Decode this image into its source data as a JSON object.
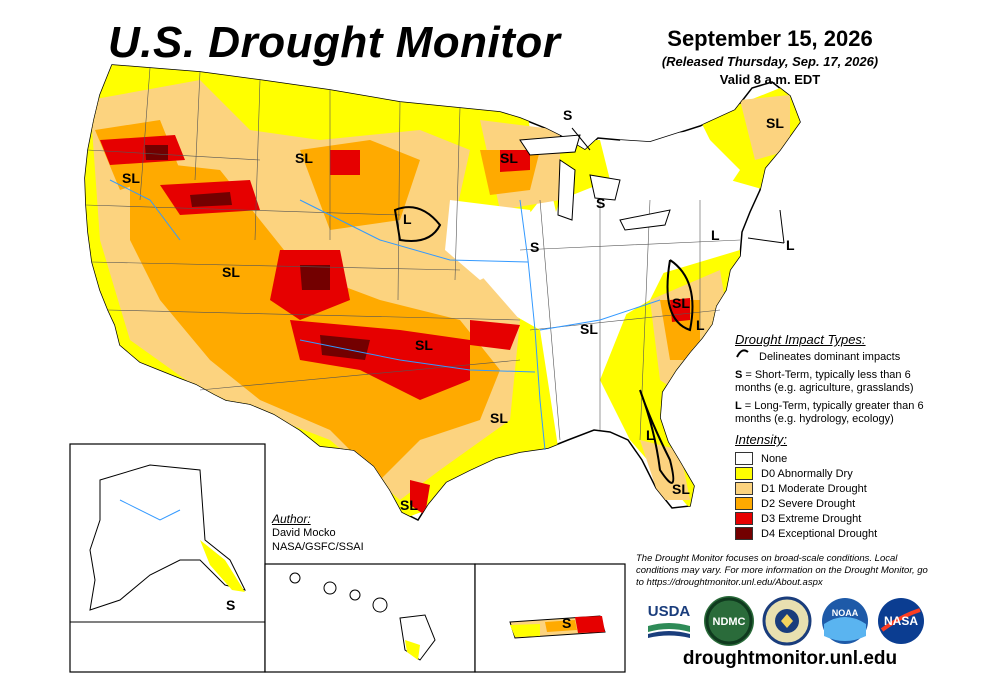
{
  "header": {
    "title": "U.S. Drought Monitor",
    "date": "September 15, 2026",
    "released": "(Released Thursday, Sep. 17, 2026)",
    "valid": "Valid 8 a.m. EDT"
  },
  "impact_legend": {
    "heading": "Drought Impact Types:",
    "delineates": "Delineates dominant impacts",
    "short_key": "S",
    "short_text": "= Short-Term, typically less than 6 months (e.g. agriculture, grasslands)",
    "long_key": "L",
    "long_text": "= Long-Term, typically greater than 6 months (e.g. hydrology, ecology)"
  },
  "intensity_legend": {
    "heading": "Intensity:",
    "items": [
      {
        "label": "None",
        "color": "#ffffff"
      },
      {
        "label": "D0 Abnormally Dry",
        "color": "#ffff00"
      },
      {
        "label": "D1 Moderate Drought",
        "color": "#fcd37f"
      },
      {
        "label": "D2 Severe Drought",
        "color": "#ffaa00"
      },
      {
        "label": "D3 Extreme Drought",
        "color": "#e60000"
      },
      {
        "label": "D4 Exceptional Drought",
        "color": "#730000"
      }
    ]
  },
  "author": {
    "label": "Author:",
    "name": "David Mocko",
    "org": "NASA/GSFC/SSAI"
  },
  "note": "The Drought Monitor focuses on broad-scale conditions. Local conditions may vary. For more information on the Drought Monitor, go to https://droughtmonitor.unl.edu/About.aspx",
  "website": "droughtmonitor.unl.edu",
  "logos": [
    {
      "name": "usda-logo",
      "text": "USDA"
    },
    {
      "name": "ndmc-logo",
      "text": "NDMC"
    },
    {
      "name": "noaa-logo",
      "text": "NOAA"
    },
    {
      "name": "nasa-logo",
      "text": "NASA"
    }
  ],
  "map_labels": {
    "sl": "SL",
    "s": "S",
    "l": "L"
  }
}
